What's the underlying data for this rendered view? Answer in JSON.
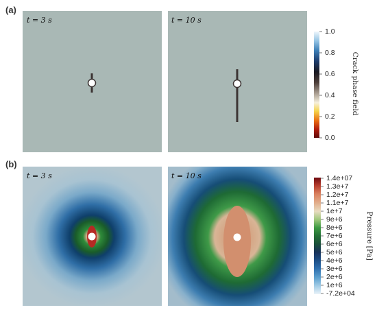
{
  "panels": {
    "a": {
      "label": "(a)",
      "time_left": "t = 3 s",
      "time_right": "t = 10 s"
    },
    "b": {
      "label": "(b)",
      "time_left": "t = 3 s",
      "time_right": "t = 10 s"
    }
  },
  "colorbar_crack": {
    "title": "Crack phase field",
    "ticks": [
      "1.0",
      "0.8",
      "0.6",
      "0.4",
      "0.2",
      "0.0"
    ]
  },
  "colorbar_pressure": {
    "title": "Pressure [Pa]",
    "ticks": [
      "1.4e+07",
      "1.3e+7",
      "1.2e+7",
      "1.1e+7",
      "1e+7",
      "9e+6",
      "8e+6",
      "7e+6",
      "6e+6",
      "5e+6",
      "4e+6",
      "3e+6",
      "2e+6",
      "1e+6",
      "-7.2e+04"
    ]
  },
  "colors": {
    "background_field": "#a9b8b5",
    "crack_line": "#3b3332",
    "wellbore": "#ffffff"
  }
}
